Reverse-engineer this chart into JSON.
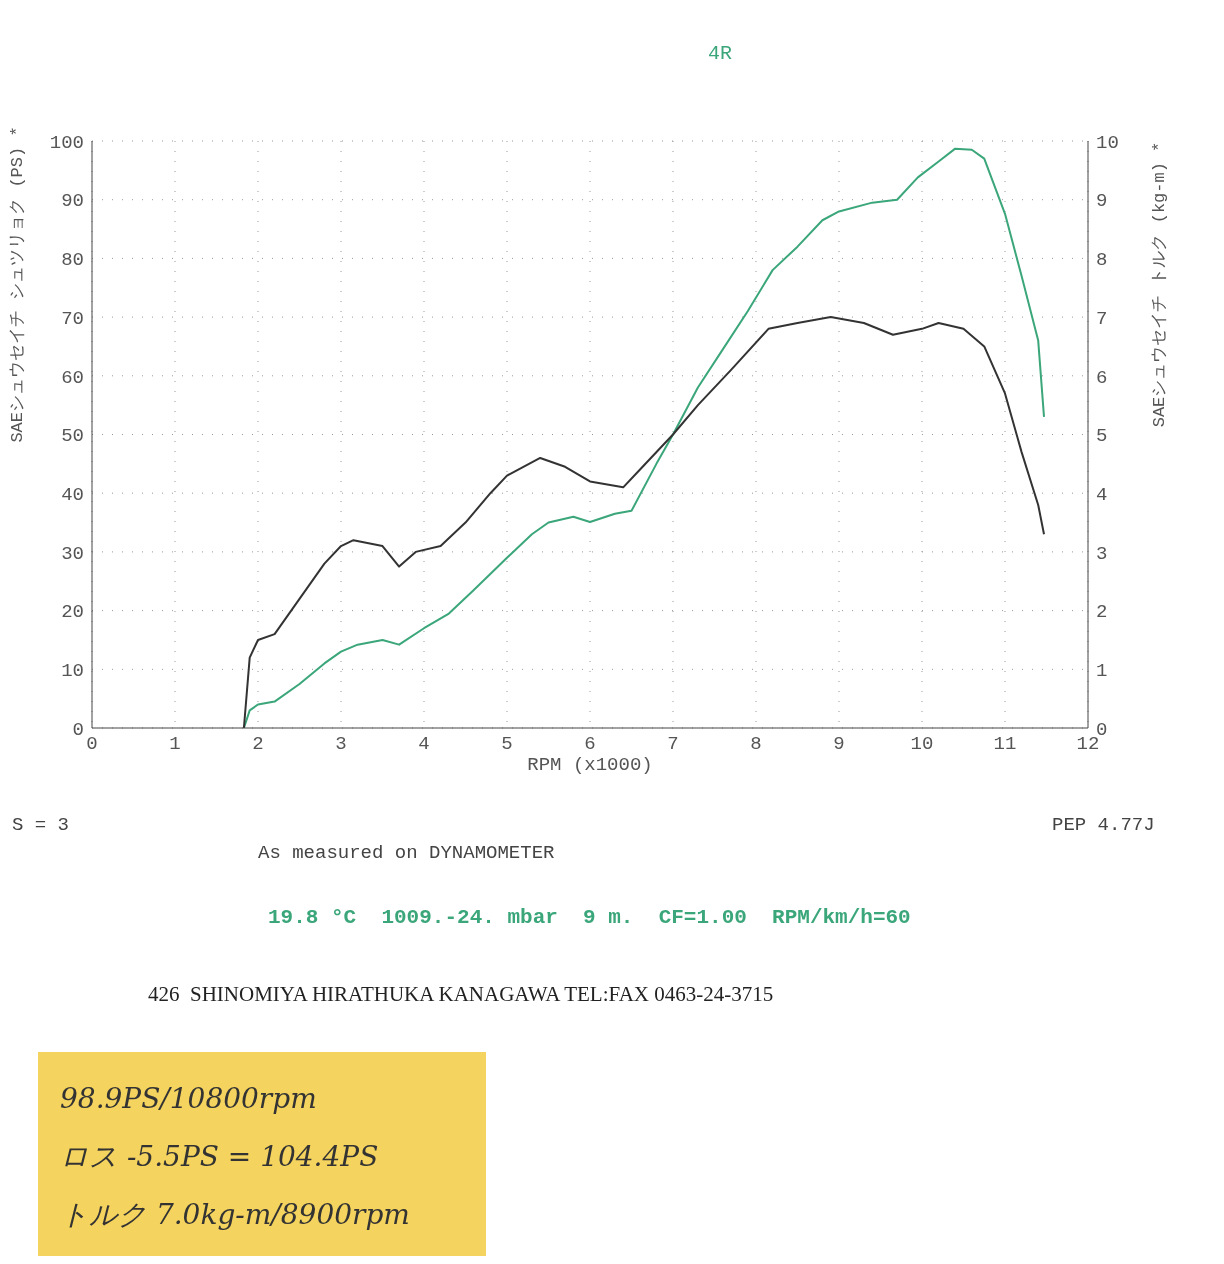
{
  "chart_data": {
    "type": "line",
    "xlabel": "RPM (x1000)",
    "ylabel": "SAEシュウセイチ シュツリョク (PS) *",
    "y2label": "SAEシュウセイチ トルク (kg-m) *",
    "xlim": [
      0,
      12
    ],
    "xticks": [
      0,
      1,
      2,
      3,
      4,
      5,
      6,
      7,
      8,
      9,
      10,
      11,
      12
    ],
    "ylim": [
      0,
      100
    ],
    "yticks": [
      0,
      10,
      20,
      30,
      40,
      50,
      60,
      70,
      80,
      90,
      100
    ],
    "y2lim": [
      0,
      10
    ],
    "y2ticks": [
      0,
      1,
      2,
      3,
      4,
      5,
      6,
      7,
      8,
      9,
      10
    ],
    "grid": true,
    "legend": false,
    "marker": "none",
    "line_style": "solid",
    "series": [
      {
        "color": "#3aa67a",
        "x": [
          1.83,
          1.9,
          2.0,
          2.2,
          2.5,
          2.8,
          3.0,
          3.2,
          3.5,
          3.7,
          4.0,
          4.3,
          4.6,
          5.0,
          5.3,
          5.5,
          5.8,
          6.0,
          6.3,
          6.5,
          6.8,
          7.0,
          7.3,
          7.6,
          7.9,
          8.2,
          8.5,
          8.8,
          9.0,
          9.4,
          9.7,
          9.95,
          10.2,
          10.4,
          10.6,
          10.75,
          11.0,
          11.2,
          11.4,
          11.47
        ],
        "values": [
          0,
          3,
          4,
          4.5,
          7.5,
          11,
          13,
          14.2,
          15,
          14.2,
          17,
          19.5,
          23.5,
          29,
          33,
          35,
          36,
          35.1,
          36.5,
          37,
          45,
          50,
          58,
          64.5,
          71,
          78,
          82,
          86.5,
          88,
          89.5,
          90,
          93.8,
          96.5,
          98.7,
          98.5,
          97,
          87.6,
          77,
          66,
          53
        ]
      },
      {
        "color": "#333333",
        "axis": "y2",
        "x": [
          1.83,
          1.9,
          2.0,
          2.2,
          2.5,
          2.8,
          3.0,
          3.15,
          3.5,
          3.7,
          3.9,
          4.2,
          4.5,
          4.8,
          5.0,
          5.4,
          5.7,
          6.0,
          6.4,
          6.6,
          7.0,
          7.3,
          7.7,
          8.15,
          8.5,
          8.9,
          9.3,
          9.65,
          10.0,
          10.2,
          10.5,
          10.75,
          11.0,
          11.2,
          11.4,
          11.47
        ],
        "values": [
          0,
          1.2,
          1.5,
          1.6,
          2.2,
          2.8,
          3.1,
          3.2,
          3.1,
          2.75,
          3.0,
          3.1,
          3.5,
          4.0,
          4.3,
          4.6,
          4.45,
          4.2,
          4.1,
          4.4,
          5.0,
          5.5,
          6.1,
          6.8,
          6.9,
          7.0,
          6.9,
          6.7,
          6.8,
          6.9,
          6.8,
          6.5,
          5.7,
          4.7,
          3.8,
          3.3
        ]
      }
    ],
    "annotations": [
      "4R",
      "S = 3",
      "PEP 4.77J",
      "As measured on DYNAMOMETER",
      "19.8 °C  1009.-24. mbar  9 m.  CF=1.00  RPM/km/h=60",
      "426  SHINOMIYA HIRATHUKA KANAGAWA TEL:FAX 0463-24-3715",
      "98.9PS/10800rpm",
      "ロス -5.5PS = 104.4PS",
      "トルク 7.0kg-m/8900rpm"
    ]
  }
}
